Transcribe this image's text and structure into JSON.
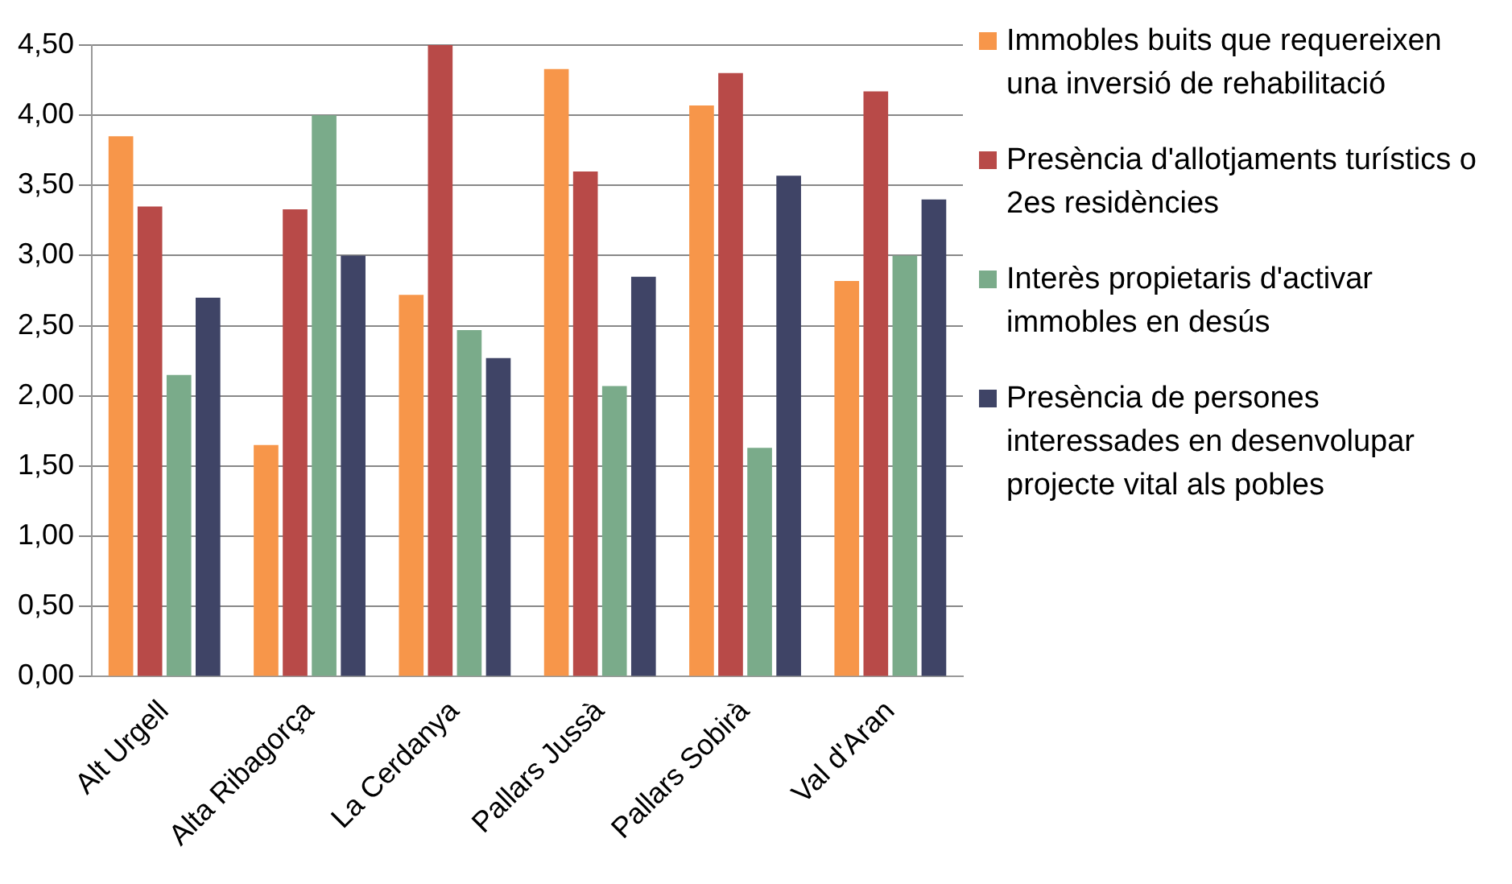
{
  "chart_data": {
    "type": "bar",
    "categories": [
      "Alt Urgell",
      "Alta Ribagorça",
      "La Cerdanya",
      "Pallars Jussà",
      "Pallars Sobirà",
      "Val d'Aran"
    ],
    "series": [
      {
        "name": "Immobles buits que requereixen una inversió de rehabilitació",
        "color": "#f7964a",
        "values": [
          3.85,
          1.65,
          2.72,
          4.33,
          4.07,
          2.82
        ]
      },
      {
        "name": "Presència d'allotjaments turístics o 2es residències",
        "color": "#b84a48",
        "values": [
          3.35,
          3.33,
          4.5,
          3.6,
          4.3,
          4.17
        ]
      },
      {
        "name": "Interès propietaris d'activar immobles en desús",
        "color": "#7aab8a",
        "values": [
          2.15,
          4.0,
          2.47,
          2.07,
          1.63,
          3.0
        ]
      },
      {
        "name": "Presència de persones interessades en desenvolupar  projecte vital als pobles",
        "color": "#3f4466",
        "values": [
          2.7,
          3.0,
          2.27,
          2.85,
          3.57,
          3.4
        ]
      }
    ],
    "ylim": [
      0,
      4.5
    ],
    "yticks": [
      {
        "value": 0,
        "label": "0,00"
      },
      {
        "value": 0.5,
        "label": "0,50"
      },
      {
        "value": 1,
        "label": "1,00"
      },
      {
        "value": 1.5,
        "label": "1,50"
      },
      {
        "value": 2,
        "label": "2,00"
      },
      {
        "value": 2.5,
        "label": "2,50"
      },
      {
        "value": 3,
        "label": "3,00"
      },
      {
        "value": 3.5,
        "label": "3,50"
      },
      {
        "value": 4,
        "label": "4,00"
      },
      {
        "value": 4.5,
        "label": "4,50"
      }
    ],
    "grid": "y",
    "legend": "right"
  }
}
